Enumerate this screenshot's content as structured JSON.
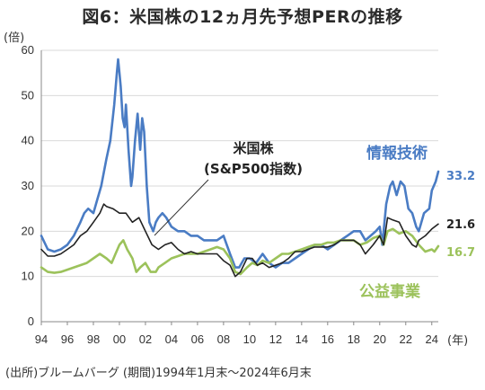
{
  "chart_data": {
    "type": "line",
    "title": "図6：米国株の12ヵ月先予想PERの推移",
    "source_note": "(出所)ブルームバーグ (期間)1994年1月末～2024年6月末",
    "y_unit_label": "(倍)",
    "x_unit_label": "(年)",
    "ylim": [
      0,
      60
    ],
    "xlim": [
      1994,
      2024.5
    ],
    "y_ticks": [
      "0",
      "10",
      "20",
      "30",
      "40",
      "50",
      "60"
    ],
    "x_ticks": [
      "94",
      "96",
      "98",
      "00",
      "02",
      "04",
      "06",
      "08",
      "10",
      "12",
      "14",
      "16",
      "18",
      "20",
      "22",
      "24"
    ],
    "grid": true,
    "series": [
      {
        "name": "情報技術",
        "color": "#4a7cc4",
        "end_label": "33.2",
        "x": [
          1994.0,
          1994.5,
          1995.0,
          1995.5,
          1996.0,
          1996.5,
          1997.0,
          1997.3,
          1997.6,
          1998.0,
          1998.3,
          1998.6,
          1998.8,
          1999.0,
          1999.3,
          1999.6,
          1999.8,
          1999.9,
          2000.0,
          2000.1,
          2000.25,
          2000.4,
          2000.5,
          2000.7,
          2000.9,
          2001.0,
          2001.2,
          2001.4,
          2001.6,
          2001.75,
          2001.9,
          2002.1,
          2002.3,
          2002.6,
          2002.8,
          2003.0,
          2003.3,
          2003.6,
          2004.0,
          2004.5,
          2005.0,
          2005.5,
          2006.0,
          2006.5,
          2007.0,
          2007.5,
          2008.0,
          2008.5,
          2008.9,
          2009.2,
          2009.6,
          2010.0,
          2010.5,
          2011.0,
          2011.5,
          2012.0,
          2012.5,
          2013.0,
          2013.5,
          2014.0,
          2014.5,
          2015.0,
          2015.5,
          2016.0,
          2016.5,
          2017.0,
          2017.5,
          2018.0,
          2018.5,
          2018.9,
          2019.3,
          2019.7,
          2020.0,
          2020.2,
          2020.5,
          2020.8,
          2021.0,
          2021.3,
          2021.6,
          2021.9,
          2022.2,
          2022.5,
          2022.8,
          2023.0,
          2023.4,
          2023.8,
          2024.0,
          2024.3,
          2024.5
        ],
        "values": [
          19,
          16,
          15.5,
          16,
          17,
          19,
          22,
          24,
          25,
          24,
          27,
          30,
          33,
          36,
          40,
          48,
          55,
          58,
          55,
          52,
          45,
          43,
          48,
          38,
          30,
          32,
          40,
          46,
          38,
          45,
          42,
          30,
          22,
          20,
          22,
          23,
          24,
          23,
          21,
          20,
          20,
          19,
          19,
          18,
          18,
          18,
          19,
          15,
          12,
          12,
          14,
          14,
          13,
          15,
          13,
          12,
          13,
          13,
          14,
          15,
          16,
          17,
          17,
          16,
          17,
          18,
          19,
          20,
          20,
          18,
          19,
          20,
          21,
          17,
          26,
          30,
          31,
          28,
          31,
          30,
          25,
          24,
          21,
          20,
          24,
          25,
          29,
          31,
          33.2
        ]
      },
      {
        "name": "米国株\n(S&P500指数)",
        "color": "#222222",
        "end_label": "21.6",
        "x": [
          1994.0,
          1994.5,
          1995.0,
          1995.5,
          1996.0,
          1996.5,
          1997.0,
          1997.5,
          1998.0,
          1998.5,
          1998.8,
          1999.0,
          1999.5,
          2000.0,
          2000.5,
          2001.0,
          2001.5,
          2002.0,
          2002.5,
          2003.0,
          2003.5,
          2004.0,
          2004.5,
          2005.0,
          2005.5,
          2006.0,
          2006.5,
          2007.0,
          2007.5,
          2008.0,
          2008.5,
          2008.9,
          2009.3,
          2009.8,
          2010.2,
          2010.6,
          2011.0,
          2011.5,
          2012.0,
          2012.5,
          2013.0,
          2013.5,
          2014.0,
          2014.5,
          2015.0,
          2015.5,
          2016.0,
          2016.5,
          2017.0,
          2017.5,
          2018.0,
          2018.5,
          2018.9,
          2019.5,
          2020.0,
          2020.3,
          2020.6,
          2021.0,
          2021.5,
          2022.0,
          2022.5,
          2022.8,
          2023.0,
          2023.5,
          2024.0,
          2024.5
        ],
        "values": [
          16,
          14.5,
          14.5,
          15,
          16,
          17,
          19,
          20,
          22,
          24,
          26,
          25.5,
          25,
          24,
          24,
          22,
          23,
          20,
          17,
          16,
          17,
          17.5,
          16,
          15,
          15.5,
          15,
          15,
          15,
          15,
          13.5,
          12.5,
          10,
          11,
          14,
          14,
          12.5,
          13,
          12,
          12.5,
          13,
          14,
          15.5,
          15.5,
          16,
          16.5,
          16.5,
          16.5,
          17,
          18,
          18,
          18,
          17,
          15,
          17,
          19,
          17,
          23,
          22.5,
          22,
          19,
          17,
          16.5,
          18,
          19,
          20.5,
          21.6
        ]
      },
      {
        "name": "公益事業",
        "color": "#9cc25b",
        "end_label": "16.7",
        "x": [
          1994.0,
          1994.5,
          1995.0,
          1995.5,
          1996.0,
          1996.5,
          1997.0,
          1997.5,
          1998.0,
          1998.5,
          1999.0,
          1999.4,
          1999.7,
          2000.0,
          2000.3,
          2000.6,
          2001.0,
          2001.3,
          2001.6,
          2002.0,
          2002.4,
          2002.8,
          2003.0,
          2003.5,
          2004.0,
          2004.5,
          2005.0,
          2005.5,
          2006.0,
          2006.5,
          2007.0,
          2007.5,
          2008.0,
          2008.5,
          2008.9,
          2009.3,
          2009.8,
          2010.2,
          2010.6,
          2011.0,
          2011.5,
          2012.0,
          2012.5,
          2013.0,
          2013.5,
          2014.0,
          2014.5,
          2015.0,
          2015.5,
          2016.0,
          2016.5,
          2017.0,
          2017.5,
          2018.0,
          2018.5,
          2019.0,
          2019.5,
          2020.0,
          2020.3,
          2020.6,
          2021.0,
          2021.5,
          2022.0,
          2022.5,
          2023.0,
          2023.5,
          2024.0,
          2024.2,
          2024.5
        ],
        "values": [
          12,
          11,
          10.8,
          11,
          11.5,
          12,
          12.5,
          13,
          14,
          15,
          14,
          13,
          15,
          17,
          18,
          16,
          14,
          11,
          12,
          13,
          11,
          11,
          12,
          13,
          14,
          14.5,
          15,
          15,
          15,
          15.5,
          16,
          16.5,
          16,
          14,
          11,
          10.5,
          12,
          13,
          12.5,
          13.5,
          13,
          14,
          15,
          15,
          15.5,
          16,
          16.5,
          17,
          17,
          17.5,
          17.5,
          18,
          18,
          18,
          17,
          17.5,
          18.5,
          19,
          17,
          20,
          20.5,
          19.5,
          20,
          19,
          17,
          15.5,
          16,
          15.5,
          16.7
        ]
      }
    ]
  }
}
